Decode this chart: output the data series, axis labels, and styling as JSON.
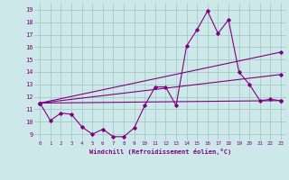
{
  "xlabel": "Windchill (Refroidissement éolien,°C)",
  "bg_color": "#cce8e8",
  "line_color": "#800080",
  "grid_color": "#a8c8c8",
  "xlim": [
    -0.5,
    23.5
  ],
  "ylim": [
    8.5,
    19.5
  ],
  "yticks": [
    9,
    10,
    11,
    12,
    13,
    14,
    15,
    16,
    17,
    18,
    19
  ],
  "xticks": [
    0,
    1,
    2,
    3,
    4,
    5,
    6,
    7,
    8,
    9,
    10,
    11,
    12,
    13,
    14,
    15,
    16,
    17,
    18,
    19,
    20,
    21,
    22,
    23
  ],
  "series1_x": [
    0,
    1,
    2,
    3,
    4,
    5,
    6,
    7,
    8,
    9,
    10,
    11,
    12,
    13,
    14,
    15,
    16,
    17,
    18,
    19,
    20,
    21,
    22,
    23
  ],
  "series1_y": [
    11.5,
    10.1,
    10.7,
    10.6,
    9.6,
    9.0,
    9.4,
    8.8,
    8.8,
    9.5,
    11.3,
    12.8,
    12.8,
    11.3,
    16.1,
    17.4,
    18.9,
    17.1,
    18.2,
    14.0,
    13.0,
    11.7,
    11.8,
    11.7
  ],
  "series2_x": [
    0,
    23
  ],
  "series2_y": [
    11.5,
    15.6
  ],
  "series3_x": [
    0,
    23
  ],
  "series3_y": [
    11.5,
    11.7
  ],
  "series4_x": [
    0,
    23
  ],
  "series4_y": [
    11.5,
    13.8
  ]
}
